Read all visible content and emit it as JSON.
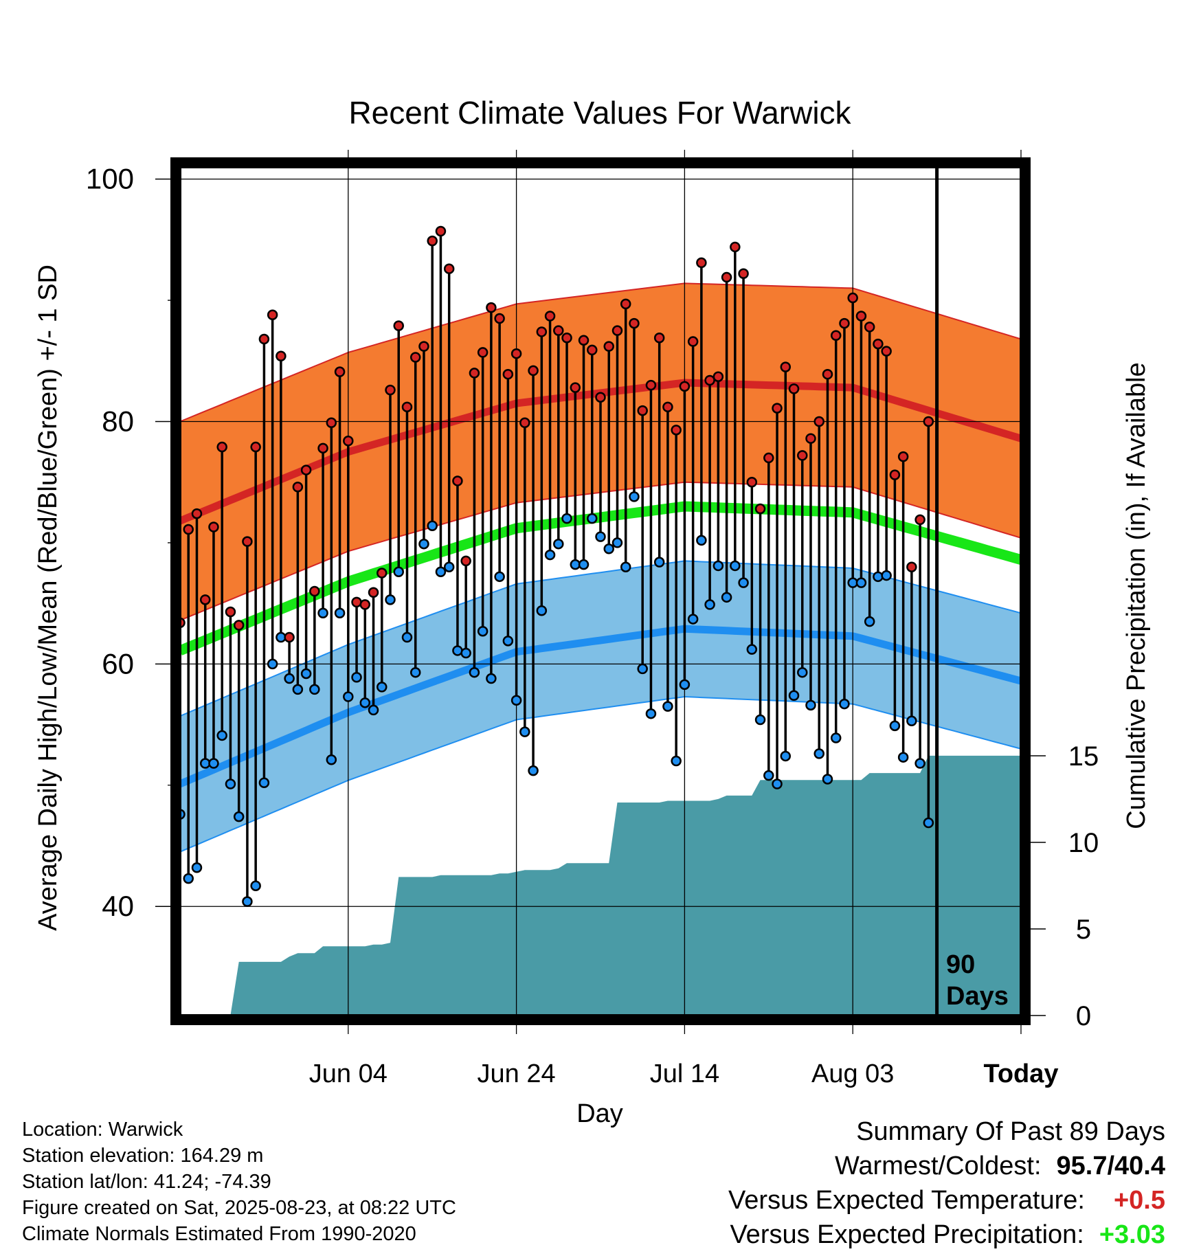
{
  "chart_data": {
    "type": "line",
    "title": "Recent Climate Values For Warwick",
    "xlabel": "Day",
    "ylabel": "Average Daily High/Low/Mean (Red/Blue/Green) +/- 1 SD",
    "y2label": "Cumulative Precipitation (in), If Available",
    "x_tick_labels": [
      "Jun 04",
      "Jun 24",
      "Jul 14",
      "Aug 03",
      "Today"
    ],
    "y_ticks": [
      40,
      60,
      80,
      100
    ],
    "y2_ticks": [
      0,
      5,
      10,
      15
    ],
    "ylim": [
      31,
      101
    ],
    "y2lim": [
      0,
      49
    ],
    "day_range": [
      -90,
      10
    ],
    "today_marker": {
      "line1": "90",
      "line2": "Days"
    },
    "grid": true,
    "colors": {
      "high": "#d42524",
      "high_band": "#f47b30",
      "low": "#1f8ef0",
      "low_band": "#7fbfe6",
      "mean": "#18e617",
      "precip": "#4a9ba6"
    },
    "normals": {
      "high": {
        "days": [
          -90,
          -70,
          -50,
          -30,
          -10,
          10
        ],
        "values": [
          71.8,
          77.5,
          81.5,
          83.2,
          82.8,
          78.6
        ]
      },
      "low": {
        "days": [
          -90,
          -70,
          -50,
          -30,
          -10,
          10
        ],
        "values": [
          50.1,
          56.0,
          61.0,
          62.9,
          62.3,
          58.6
        ]
      },
      "mean": {
        "days": [
          -90,
          -70,
          -50,
          -30,
          -10,
          10
        ],
        "values": [
          61.1,
          66.8,
          71.2,
          73.0,
          72.5,
          68.6
        ]
      },
      "high_sd": 8.2,
      "low_sd": 5.6
    },
    "series": [
      {
        "name": "High",
        "values": [
          63.4,
          71.1,
          72.4,
          65.3,
          71.3,
          77.9,
          64.3,
          63.2,
          70.1,
          77.9,
          86.8,
          88.8,
          85.4,
          62.2,
          74.6,
          76.0,
          66.0,
          77.8,
          79.9,
          84.1,
          78.4,
          65.1,
          64.9,
          65.9,
          67.5,
          82.6,
          87.9,
          81.2,
          85.3,
          86.2,
          94.9,
          95.7,
          92.6,
          75.1,
          68.5,
          84.0,
          85.7,
          89.4,
          88.5,
          83.9,
          85.6,
          79.9,
          84.2,
          87.4,
          88.7,
          87.5,
          86.9,
          82.8,
          86.7,
          85.9,
          82.0,
          86.2,
          87.5,
          89.7,
          88.1,
          80.9,
          83.0,
          86.9,
          81.2,
          79.3,
          82.9,
          86.6,
          93.1,
          83.4,
          83.7,
          91.9,
          94.4,
          92.2,
          75.0,
          72.8,
          77.0,
          81.1,
          84.5,
          82.7,
          77.2,
          78.6,
          80.0,
          83.9,
          87.1,
          88.1,
          90.2,
          88.7,
          87.8,
          86.4,
          85.8,
          75.6,
          77.1,
          68.0,
          71.9,
          80.0
        ]
      },
      {
        "name": "Low",
        "values": [
          47.6,
          42.3,
          43.2,
          51.8,
          51.8,
          54.1,
          50.1,
          47.4,
          40.4,
          41.7,
          50.2,
          60.0,
          62.2,
          58.8,
          57.9,
          59.2,
          57.9,
          64.2,
          52.1,
          64.2,
          57.3,
          58.9,
          56.8,
          56.2,
          58.1,
          65.3,
          67.6,
          62.2,
          59.3,
          69.9,
          71.4,
          67.6,
          68.0,
          61.1,
          60.9,
          59.3,
          62.7,
          58.8,
          67.2,
          61.9,
          57.0,
          54.4,
          51.2,
          64.4,
          69.0,
          69.9,
          72.0,
          68.2,
          68.2,
          72.0,
          70.5,
          69.5,
          70.0,
          68.0,
          73.8,
          59.6,
          55.9,
          68.4,
          56.5,
          52.0,
          58.3,
          63.7,
          70.2,
          64.9,
          68.1,
          65.5,
          68.1,
          66.7,
          61.2,
          55.4,
          50.8,
          50.1,
          52.4,
          57.4,
          59.3,
          56.6,
          52.6,
          50.5,
          53.9,
          56.7,
          66.7,
          66.7,
          63.5,
          67.2,
          67.3,
          54.9,
          52.3,
          55.3,
          51.8,
          46.9
        ]
      }
    ],
    "precipitation": {
      "days": [
        -90,
        -89,
        -88,
        -87,
        -86,
        -85,
        -84,
        -83,
        -82,
        -81,
        -80,
        -79,
        -78,
        -77,
        -76,
        -75,
        -74,
        -73,
        -72,
        -71,
        -70,
        -69,
        -68,
        -67,
        -66,
        -65,
        -64,
        -63,
        -62,
        -61,
        -60,
        -59,
        -58,
        -57,
        -56,
        -55,
        -54,
        -53,
        -52,
        -51,
        -50,
        -49,
        -48,
        -47,
        -46,
        -45,
        -44,
        -43,
        -42,
        -41,
        -40,
        -39,
        -38,
        -37,
        -36,
        -35,
        -34,
        -33,
        -32,
        -31,
        -30,
        -29,
        -28,
        -27,
        -26,
        -25,
        -24,
        -23,
        -22,
        -21,
        -20,
        -19,
        -18,
        -17,
        -16,
        -15,
        -14,
        -13,
        -12,
        -11,
        -10,
        -9,
        -8,
        -7,
        -6,
        -5,
        -4,
        -3,
        -2,
        -1,
        0
      ],
      "values": [
        0,
        0,
        0,
        0,
        0,
        0,
        0,
        3.1,
        3.1,
        3.1,
        3.1,
        3.1,
        3.1,
        3.4,
        3.6,
        3.6,
        3.6,
        4.0,
        4.0,
        4.0,
        4.0,
        4.0,
        4.0,
        4.1,
        4.1,
        4.2,
        8.0,
        8.0,
        8.0,
        8.0,
        8.0,
        8.1,
        8.1,
        8.1,
        8.1,
        8.1,
        8.1,
        8.1,
        8.2,
        8.2,
        8.3,
        8.4,
        8.4,
        8.4,
        8.4,
        8.5,
        8.8,
        8.8,
        8.8,
        8.8,
        8.8,
        8.8,
        12.3,
        12.3,
        12.3,
        12.3,
        12.3,
        12.3,
        12.4,
        12.4,
        12.4,
        12.4,
        12.4,
        12.4,
        12.5,
        12.7,
        12.7,
        12.7,
        12.7,
        13.6,
        13.6,
        13.6,
        13.6,
        13.6,
        13.6,
        13.6,
        13.6,
        13.6,
        13.6,
        13.6,
        13.6,
        13.6,
        14.0,
        14.0,
        14.0,
        14.0,
        14.0,
        14.0,
        14.0,
        15.0,
        15.0
      ]
    }
  },
  "footer": {
    "location": "Location: Warwick",
    "elevation": "Station elevation: 164.29 m",
    "latlon": "Station lat/lon: 41.24; -74.39",
    "created": "Figure created on Sat, 2025-08-23, at 08:22 UTC",
    "normals": "Climate Normals Estimated From 1990-2020"
  },
  "summary": {
    "title": "Summary Of Past 89 Days",
    "warmest_coldest_label": "Warmest/Coldest:",
    "warmest_coldest_value": "95.7/40.4",
    "temp_label": "Versus Expected Temperature:",
    "temp_value": "+0.5",
    "temp_color": "#d42524",
    "precip_label": "Versus Expected Precipitation:",
    "precip_value": "+3.03",
    "precip_color": "#18e617"
  }
}
